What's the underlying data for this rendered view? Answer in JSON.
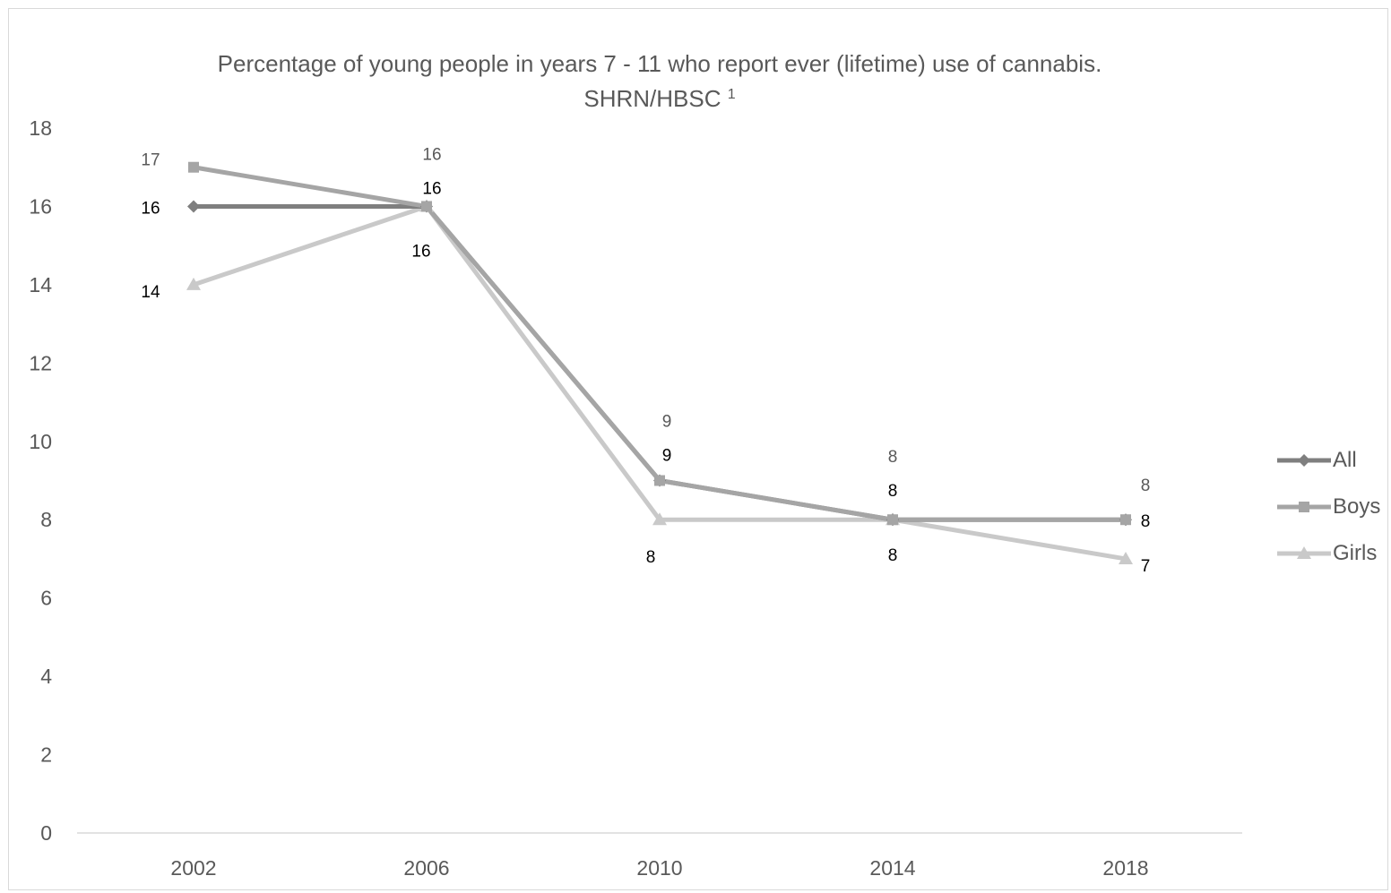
{
  "chart_data": {
    "type": "line",
    "title": "Percentage of young people in years 7 - 11 who report ever (lifetime) use of cannabis.",
    "subtitle": "SHRN/HBSC",
    "subtitle_superscript": "1",
    "categories": [
      "2002",
      "2006",
      "2010",
      "2014",
      "2018"
    ],
    "ylim": [
      0,
      18
    ],
    "yticks": [
      "0",
      "2",
      "4",
      "6",
      "8",
      "10",
      "12",
      "14",
      "16",
      "18"
    ],
    "grid": false,
    "legend_position": "right",
    "series": [
      {
        "name": "All",
        "values": [
          16,
          16,
          9,
          8,
          8
        ],
        "color": "#7f7f7f",
        "marker": "diamond",
        "labels": [
          "16",
          "16",
          "9",
          "8",
          "8"
        ]
      },
      {
        "name": "Boys",
        "values": [
          17,
          16,
          9,
          8,
          8
        ],
        "color": "#a5a5a5",
        "marker": "square",
        "labels": [
          "17",
          "16",
          "9",
          "8",
          "8"
        ]
      },
      {
        "name": "Girls",
        "values": [
          14,
          16,
          8,
          8,
          7
        ],
        "color": "#c9c9c9",
        "marker": "triangle",
        "labels": [
          "14",
          "16",
          "8",
          "8",
          "7"
        ]
      }
    ]
  }
}
